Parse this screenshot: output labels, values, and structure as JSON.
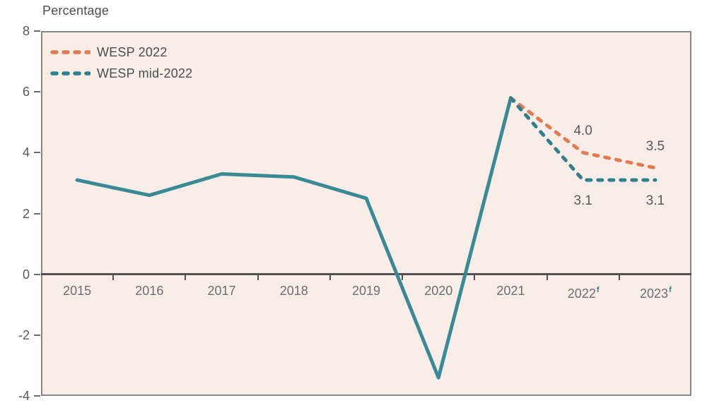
{
  "chart_data": {
    "type": "line",
    "title": "Percentage",
    "categories": [
      {
        "label": "2015",
        "forecast": false
      },
      {
        "label": "2016",
        "forecast": false
      },
      {
        "label": "2017",
        "forecast": false
      },
      {
        "label": "2018",
        "forecast": false
      },
      {
        "label": "2019",
        "forecast": false
      },
      {
        "label": "2020",
        "forecast": false
      },
      {
        "label": "2021",
        "forecast": false
      },
      {
        "label": "2022",
        "forecast": true
      },
      {
        "label": "2023",
        "forecast": true
      }
    ],
    "forecast_marker": "f",
    "ylim": [
      -4,
      8
    ],
    "yticks": [
      8,
      6,
      4,
      2,
      0,
      -2,
      -4
    ],
    "grid": false,
    "legend_position": "top-left-inside",
    "series": [
      {
        "name": "historical",
        "style": "solid",
        "color": "#3a8a96",
        "in_legend": false,
        "values": [
          3.1,
          2.6,
          3.3,
          3.2,
          2.5,
          -3.4,
          5.8,
          null,
          null
        ]
      },
      {
        "name": "WESP 2022",
        "style": "dashed",
        "color": "#e07c54",
        "in_legend": true,
        "values": [
          null,
          null,
          null,
          null,
          null,
          null,
          5.8,
          4.0,
          3.5
        ]
      },
      {
        "name": "WESP mid-2022",
        "style": "dashed",
        "color": "#2f7f8d",
        "in_legend": true,
        "values": [
          null,
          null,
          null,
          null,
          null,
          null,
          5.8,
          3.1,
          3.1
        ]
      }
    ],
    "annotations": [
      {
        "text": "4.0",
        "category_index": 7,
        "value": 4.0,
        "placement": "above"
      },
      {
        "text": "3.5",
        "category_index": 8,
        "value": 3.5,
        "placement": "above"
      },
      {
        "text": "3.1",
        "category_index": 7,
        "value": 3.1,
        "placement": "below"
      },
      {
        "text": "3.1",
        "category_index": 8,
        "value": 3.1,
        "placement": "below"
      }
    ],
    "colors": {
      "plot_background": "#f9ede8",
      "frame": "#85878a",
      "zero_axis": "#4f5153",
      "axis_text": "#58595b",
      "year_text": "#6d6e71",
      "forecast_flag": "#2f7f8d"
    }
  }
}
